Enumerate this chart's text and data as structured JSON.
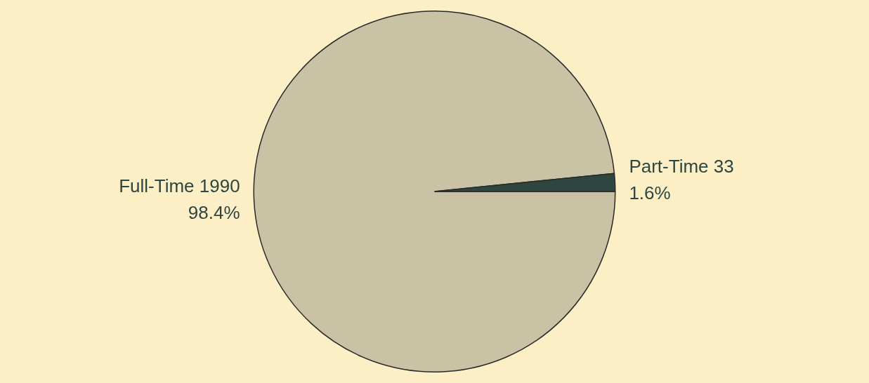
{
  "chart_data": {
    "type": "pie",
    "categories": [
      "Full-Time 1990",
      "Part-Time 33"
    ],
    "values": [
      98.4,
      1.6
    ],
    "colors": [
      "#c9c2a4",
      "#2e4640"
    ],
    "value_labels": [
      "98.4%",
      "1.6%"
    ],
    "legend": false
  }
}
